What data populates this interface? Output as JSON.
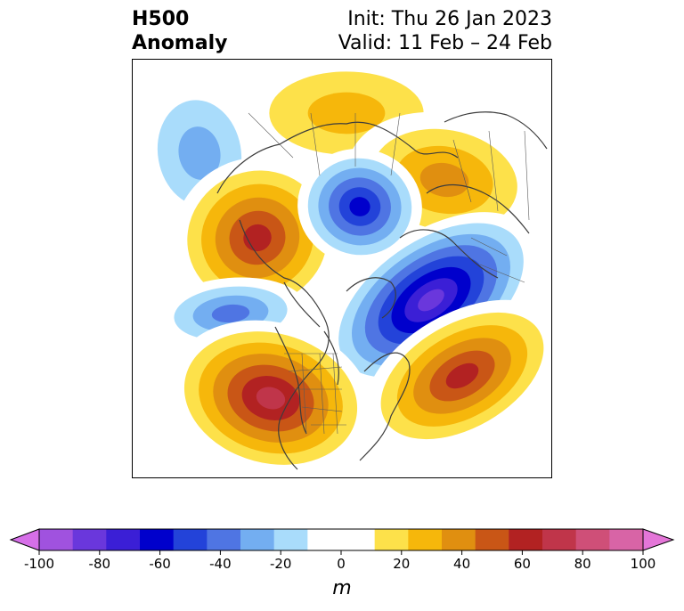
{
  "title": {
    "variable": "H500",
    "subvariable": "Anomaly",
    "init": "Init: Thu 26 Jan 2023",
    "valid": "Valid: 11 Feb – 24 Feb"
  },
  "colorbar": {
    "unit": "m",
    "min": -100,
    "max": 100,
    "step": 10,
    "tick_labels": [
      "-100",
      "-80",
      "-60",
      "-40",
      "-20",
      "0",
      "20",
      "40",
      "60",
      "80",
      "100"
    ],
    "colors": [
      "#d66fe8",
      "#a052df",
      "#6a37dc",
      "#3b1fd6",
      "#0000cc",
      "#2343d9",
      "#4f75e3",
      "#73aef1",
      "#a9dcfb",
      "#ffffff",
      "#ffffff",
      "#fde14a",
      "#f6b70b",
      "#e08f10",
      "#c95616",
      "#b22222",
      "#c0354a",
      "#cf4f78",
      "#d864a6",
      "#e476d8"
    ]
  },
  "anomalies": [
    {
      "name": "aleutian-negative",
      "value": -30
    },
    {
      "name": "canada-west-positive",
      "value": 60
    },
    {
      "name": "arctic-negative",
      "value": -60
    },
    {
      "name": "siberia-positive",
      "value": 40
    },
    {
      "name": "atlantic-negative",
      "value": -80
    },
    {
      "name": "central-pacific-negative",
      "value": -40
    },
    {
      "name": "atlantic-positive",
      "value": 60
    },
    {
      "name": "pacific-positive",
      "value": 70
    },
    {
      "name": "polar-positive",
      "value": 30
    }
  ]
}
